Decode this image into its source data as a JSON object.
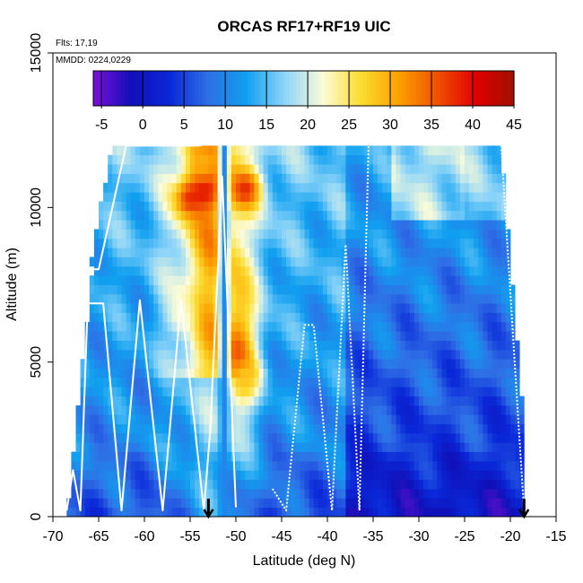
{
  "chart_data": {
    "type": "heatmap",
    "title": "ORCAS RF17+RF19 UIC",
    "flights_label": "Flts: 17,19",
    "dates_label": "MMDD: 0224,0229",
    "xlabel": "Latitude (deg N)",
    "ylabel": "Altitude (m)",
    "xlim": [
      -70,
      -15
    ],
    "ylim": [
      0,
      15000
    ],
    "x_ticks": [
      "-70",
      "-65",
      "-60",
      "-55",
      "-50",
      "-45",
      "-40",
      "-35",
      "-30",
      "-25",
      "-20",
      "-15"
    ],
    "y_ticks": [
      "0",
      "5000",
      "10000",
      "15000"
    ],
    "colorbar": {
      "min": -6,
      "max": 45,
      "tick_labels": [
        "-5",
        "0",
        "5",
        "10",
        "15",
        "20",
        "25",
        "30",
        "35",
        "40",
        "45"
      ],
      "colors": [
        "#7a10d8",
        "#1010b8",
        "#0a28d8",
        "#2f6fe6",
        "#10a0f0",
        "#8cd4f8",
        "#fcfcd8",
        "#fcdc30",
        "#fca000",
        "#f05000",
        "#e00000",
        "#a01000"
      ]
    },
    "arrow_latitudes": [
      -53,
      -18.5
    ],
    "flight_tracks": {
      "color": "#ffffff",
      "left_profile": [
        [
          -68.5,
          200
        ],
        [
          -67.8,
          1500
        ],
        [
          -67,
          200
        ],
        [
          -66.2,
          6900
        ],
        [
          -64.5,
          6900
        ],
        [
          -62.5,
          200
        ],
        [
          -60.5,
          7000
        ],
        [
          -58,
          200
        ],
        [
          -56,
          7000
        ],
        [
          -53.5,
          200
        ],
        [
          -52.8,
          2800
        ],
        [
          -51.5,
          11000
        ],
        [
          -50,
          300
        ]
      ],
      "right_profile": [
        [
          -46,
          900
        ],
        [
          -44.5,
          200
        ],
        [
          -42.5,
          6200
        ],
        [
          -41.5,
          6200
        ],
        [
          -39.5,
          200
        ],
        [
          -38,
          8800
        ],
        [
          -36.5,
          200
        ],
        [
          -35.5,
          12000
        ]
      ],
      "upper_track": [
        [
          -66.5,
          8000
        ],
        [
          -65,
          8000
        ],
        [
          -62,
          12000
        ],
        [
          -54,
          12000
        ],
        [
          -52,
          12200
        ]
      ],
      "right_edge": [
        [
          -21,
          12000
        ],
        [
          -19,
          2500
        ],
        [
          -18.5,
          200
        ]
      ]
    },
    "hot_spots": [
      {
        "lat": -55,
        "alt": 10300,
        "value": 37
      },
      {
        "lat": -53.5,
        "alt": 10600,
        "value": 40
      },
      {
        "lat": -49,
        "alt": 10600,
        "value": 38
      },
      {
        "lat": -53.5,
        "alt": 11500,
        "value": 30
      },
      {
        "lat": -49,
        "alt": 4500,
        "value": 28
      },
      {
        "lat": -56,
        "alt": 6500,
        "value": 22
      }
    ]
  }
}
